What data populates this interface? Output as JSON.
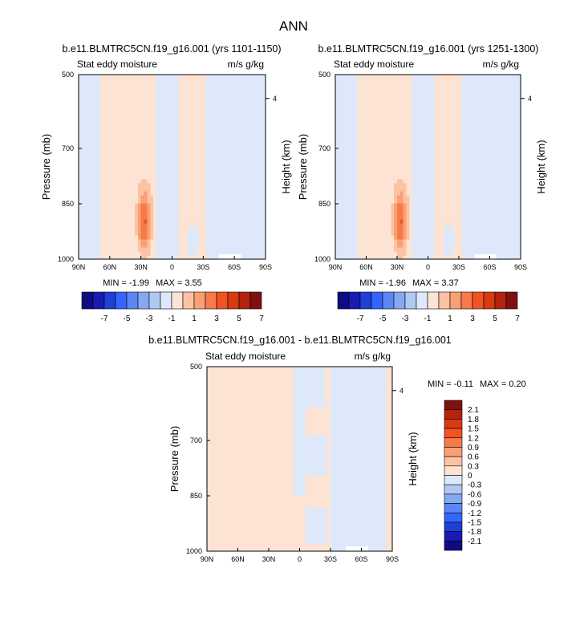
{
  "figure_title": "ANN",
  "chart_data": [
    {
      "type": "heatmap",
      "title": "b.e11.BLMTRC5CN.f19_g16.001 (yrs 1101-1150)",
      "left_label": "Stat eddy moisture",
      "right_label": "m/s g/kg",
      "ylabel": "Pressure (mb)",
      "right_axis_label": "Height (km)",
      "x_ticks": [
        "90N",
        "60N",
        "30N",
        "0",
        "30S",
        "60S",
        "90S"
      ],
      "x_lat": [
        90,
        60,
        30,
        0,
        -30,
        -60,
        -90
      ],
      "y_ticks": [
        "500",
        "700",
        "850",
        "1000"
      ],
      "y_values": [
        500,
        700,
        850,
        1000
      ],
      "right_ticks": [
        "4"
      ],
      "right_tick_km": [
        4
      ],
      "min_text": "MIN =  -1.99",
      "max_text": "MAX =   3.55",
      "min": -1.99,
      "max": 3.55,
      "field": "full"
    },
    {
      "type": "heatmap",
      "title": "b.e11.BLMTRC5CN.f19_g16.001 (yrs 1251-1300)",
      "left_label": "Stat eddy moisture",
      "right_label": "m/s g/kg",
      "ylabel": "Pressure (mb)",
      "right_axis_label": "Height (km)",
      "x_ticks": [
        "90N",
        "60N",
        "30N",
        "0",
        "30S",
        "60S",
        "90S"
      ],
      "x_lat": [
        90,
        60,
        30,
        0,
        -30,
        -60,
        -90
      ],
      "y_ticks": [
        "500",
        "700",
        "850",
        "1000"
      ],
      "y_values": [
        500,
        700,
        850,
        1000
      ],
      "right_ticks": [
        "4"
      ],
      "right_tick_km": [
        4
      ],
      "min_text": "MIN =  -1.96",
      "max_text": "MAX =   3.37",
      "min": -1.96,
      "max": 3.37,
      "field": "full"
    },
    {
      "type": "heatmap",
      "title": "b.e11.BLMTRC5CN.f19_g16.001 - b.e11.BLMTRC5CN.f19_g16.001",
      "left_label": "Stat eddy moisture",
      "right_label": "m/s g/kg",
      "ylabel": "Pressure (mb)",
      "right_axis_label": "Height (km)",
      "x_ticks": [
        "90N",
        "60N",
        "30N",
        "0",
        "30S",
        "60S",
        "90S"
      ],
      "x_lat": [
        90,
        60,
        30,
        0,
        -30,
        -60,
        -90
      ],
      "y_ticks": [
        "500",
        "700",
        "850",
        "1000"
      ],
      "y_values": [
        500,
        700,
        850,
        1000
      ],
      "right_ticks": [
        "4"
      ],
      "right_tick_km": [
        4
      ],
      "min_text": "MIN =  -0.11",
      "max_text": "MAX =   0.20",
      "min": -0.11,
      "max": 0.2,
      "field": "diff"
    }
  ],
  "colorbar_top": {
    "colors": [
      "#0d0d80",
      "#1a1ab3",
      "#1f3fd9",
      "#3366ff",
      "#5b86f5",
      "#86a8ee",
      "#b0c9f2",
      "#dde9fa",
      "#fce3d3",
      "#fbc3a3",
      "#f9a075",
      "#f77a4a",
      "#f2541f",
      "#d93a12",
      "#b3230d",
      "#801010"
    ],
    "labels": [
      "-7",
      "-5",
      "-3",
      "-1",
      "1",
      "3",
      "5",
      "7"
    ]
  },
  "colorbar_diff": {
    "colors": [
      "#801010",
      "#b3230d",
      "#d93a12",
      "#f2541f",
      "#f77a4a",
      "#f9a075",
      "#fbc3a3",
      "#fce3d3",
      "#dde9fa",
      "#b0c9f2",
      "#86a8ee",
      "#5b86f5",
      "#3366ff",
      "#1f3fd9",
      "#1a1ab3",
      "#0d0d80"
    ],
    "labels": [
      "2.1",
      "1.8",
      "1.5",
      "1.2",
      "0.9",
      "0.6",
      "0.3",
      "0",
      "-0.3",
      "-0.6",
      "-0.9",
      "-1.2",
      "-1.5",
      "-1.8",
      "-2.1"
    ]
  }
}
